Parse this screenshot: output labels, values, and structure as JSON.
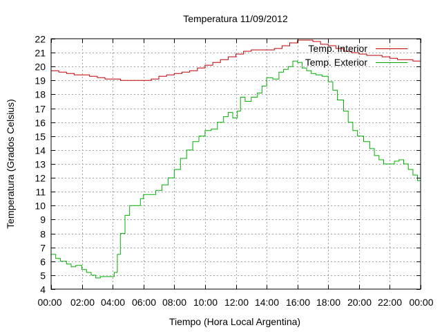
{
  "chart_data": {
    "type": "line",
    "title": "Temperatura 11/09/2012",
    "xlabel": "Tiempo (Hora Local Argentina)",
    "ylabel": "Temperatura (Grados Celsius)",
    "xlim": [
      0,
      24
    ],
    "ylim": [
      4,
      22
    ],
    "x_ticks": [
      0,
      2,
      4,
      6,
      8,
      10,
      12,
      14,
      16,
      18,
      20,
      22,
      24
    ],
    "x_tick_labels": [
      "00:00",
      "02:00",
      "04:00",
      "06:00",
      "08:00",
      "10:00",
      "12:00",
      "14:00",
      "16:00",
      "18:00",
      "20:00",
      "22:00",
      "00:00"
    ],
    "y_ticks": [
      4,
      5,
      6,
      7,
      8,
      9,
      10,
      11,
      12,
      13,
      14,
      15,
      16,
      17,
      18,
      19,
      20,
      21,
      22
    ],
    "grid": true,
    "legend_position": "top-right",
    "series": [
      {
        "name": "Temp. Interior",
        "color": "#c00000",
        "points": [
          [
            0.0,
            19.7
          ],
          [
            0.5,
            19.6
          ],
          [
            1.0,
            19.5
          ],
          [
            1.5,
            19.4
          ],
          [
            2.0,
            19.4
          ],
          [
            2.5,
            19.3
          ],
          [
            3.0,
            19.2
          ],
          [
            3.5,
            19.1
          ],
          [
            4.0,
            19.1
          ],
          [
            4.5,
            19.0
          ],
          [
            5.0,
            19.0
          ],
          [
            5.5,
            19.0
          ],
          [
            6.0,
            19.0
          ],
          [
            6.5,
            19.1
          ],
          [
            7.0,
            19.3
          ],
          [
            7.5,
            19.4
          ],
          [
            8.0,
            19.5
          ],
          [
            8.5,
            19.6
          ],
          [
            9.0,
            19.7
          ],
          [
            9.5,
            19.9
          ],
          [
            10.0,
            20.1
          ],
          [
            10.5,
            20.3
          ],
          [
            11.0,
            20.5
          ],
          [
            11.5,
            20.7
          ],
          [
            12.0,
            20.9
          ],
          [
            12.5,
            21.1
          ],
          [
            13.0,
            21.2
          ],
          [
            13.5,
            21.2
          ],
          [
            14.0,
            21.2
          ],
          [
            14.5,
            21.3
          ],
          [
            15.0,
            21.5
          ],
          [
            15.5,
            21.7
          ],
          [
            16.0,
            21.9
          ],
          [
            16.5,
            21.9
          ],
          [
            17.0,
            21.8
          ],
          [
            17.5,
            21.6
          ],
          [
            18.0,
            21.5
          ],
          [
            18.5,
            21.3
          ],
          [
            19.0,
            21.1
          ],
          [
            19.5,
            21.0
          ],
          [
            20.0,
            20.9
          ],
          [
            20.5,
            20.8
          ],
          [
            21.0,
            20.8
          ],
          [
            21.5,
            20.7
          ],
          [
            22.0,
            20.6
          ],
          [
            22.5,
            20.5
          ],
          [
            23.0,
            20.5
          ],
          [
            23.5,
            20.4
          ],
          [
            24.0,
            20.4
          ]
        ]
      },
      {
        "name": "Temp. Exterior",
        "color": "#00b000",
        "points": [
          [
            0.0,
            6.5
          ],
          [
            0.3,
            6.2
          ],
          [
            0.6,
            6.0
          ],
          [
            1.0,
            5.8
          ],
          [
            1.3,
            5.6
          ],
          [
            1.6,
            5.7
          ],
          [
            2.0,
            5.4
          ],
          [
            2.3,
            5.2
          ],
          [
            2.6,
            5.0
          ],
          [
            2.9,
            4.8
          ],
          [
            3.2,
            4.9
          ],
          [
            3.5,
            4.9
          ],
          [
            3.9,
            4.9
          ],
          [
            4.1,
            5.2
          ],
          [
            4.3,
            6.5
          ],
          [
            4.5,
            8.0
          ],
          [
            4.8,
            9.3
          ],
          [
            5.1,
            10.0
          ],
          [
            5.5,
            10.0
          ],
          [
            5.8,
            10.5
          ],
          [
            6.0,
            10.8
          ],
          [
            6.5,
            10.8
          ],
          [
            6.8,
            11.1
          ],
          [
            7.2,
            11.5
          ],
          [
            7.6,
            12.0
          ],
          [
            8.0,
            12.6
          ],
          [
            8.4,
            13.4
          ],
          [
            8.8,
            14.0
          ],
          [
            9.2,
            14.6
          ],
          [
            9.6,
            15.0
          ],
          [
            10.0,
            15.4
          ],
          [
            10.4,
            15.5
          ],
          [
            10.8,
            16.0
          ],
          [
            11.2,
            16.4
          ],
          [
            11.5,
            16.7
          ],
          [
            11.8,
            16.3
          ],
          [
            12.1,
            16.8
          ],
          [
            12.3,
            17.8
          ],
          [
            12.6,
            17.5
          ],
          [
            13.0,
            17.8
          ],
          [
            13.4,
            18.1
          ],
          [
            13.7,
            18.6
          ],
          [
            14.0,
            19.2
          ],
          [
            14.4,
            19.1
          ],
          [
            14.8,
            19.6
          ],
          [
            15.1,
            19.8
          ],
          [
            15.4,
            20.0
          ],
          [
            15.7,
            20.4
          ],
          [
            16.0,
            20.3
          ],
          [
            16.3,
            19.9
          ],
          [
            16.6,
            19.7
          ],
          [
            16.9,
            19.5
          ],
          [
            17.2,
            19.4
          ],
          [
            17.6,
            19.3
          ],
          [
            18.0,
            18.9
          ],
          [
            18.3,
            18.3
          ],
          [
            18.6,
            17.6
          ],
          [
            19.0,
            16.8
          ],
          [
            19.3,
            16.0
          ],
          [
            19.6,
            15.4
          ],
          [
            19.9,
            15.0
          ],
          [
            20.3,
            14.6
          ],
          [
            20.7,
            14.1
          ],
          [
            21.0,
            13.6
          ],
          [
            21.3,
            13.3
          ],
          [
            21.6,
            13.0
          ],
          [
            22.0,
            13.0
          ],
          [
            22.3,
            13.2
          ],
          [
            22.6,
            13.3
          ],
          [
            22.9,
            13.0
          ],
          [
            23.2,
            12.6
          ],
          [
            23.5,
            12.2
          ],
          [
            23.8,
            11.8
          ],
          [
            24.0,
            11.5
          ]
        ]
      }
    ]
  }
}
